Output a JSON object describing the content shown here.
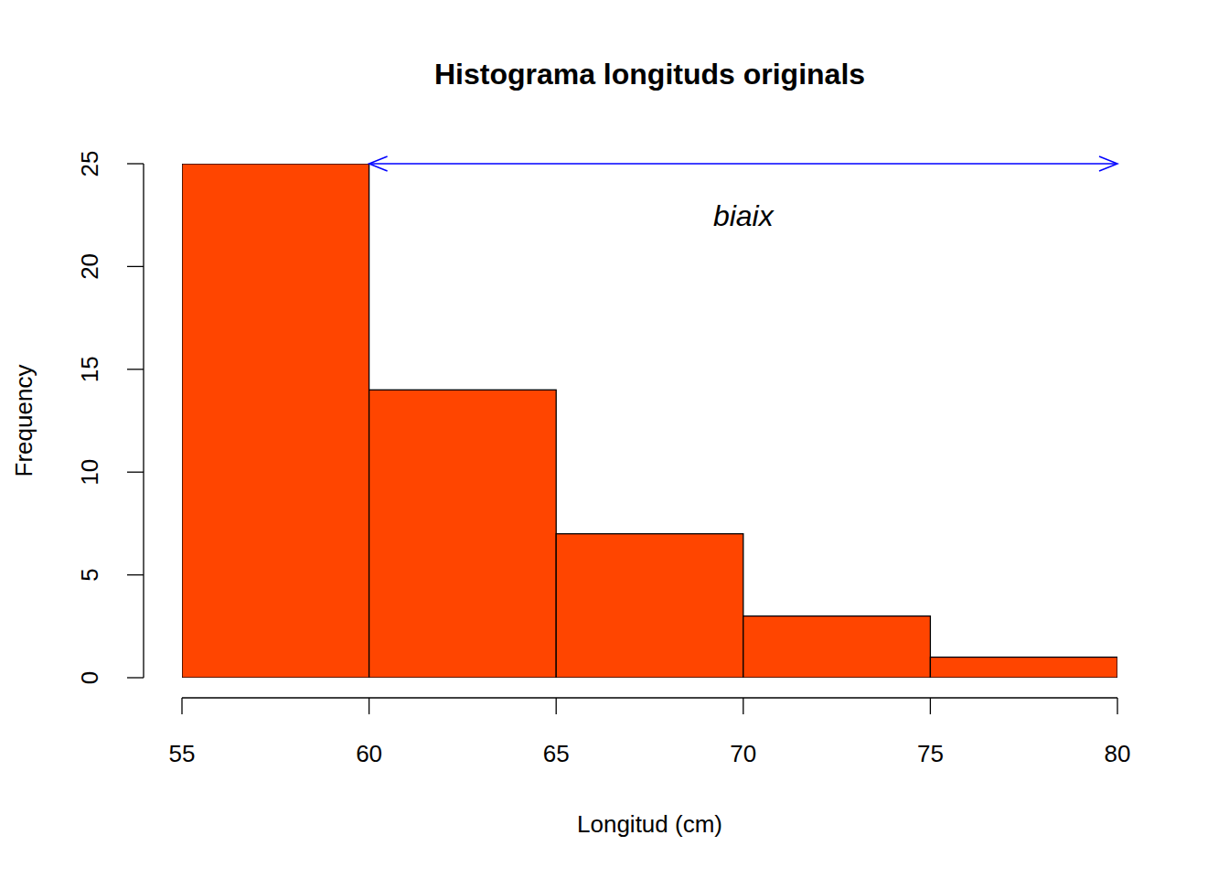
{
  "chart_data": {
    "type": "histogram",
    "title": "Histograma longituds originals",
    "x_label": "Longitud (cm)",
    "y_label": "Frequency",
    "bins": [
      55,
      60,
      65,
      70,
      75,
      80
    ],
    "values": [
      25,
      14,
      7,
      3,
      1
    ],
    "color": "#ff4500",
    "xlim": [
      55,
      80
    ],
    "xticks": [
      55,
      60,
      65,
      70,
      75,
      80
    ],
    "ylim": [
      0,
      25
    ],
    "yticks": [
      0,
      5,
      10,
      15,
      20,
      25
    ],
    "grid": false,
    "annotations": [
      {
        "text": "biaix",
        "x": 70,
        "y": 22.4,
        "arrow": {
          "x": [
            60,
            80
          ],
          "y": 25,
          "color": "#0000ff"
        }
      }
    ]
  }
}
